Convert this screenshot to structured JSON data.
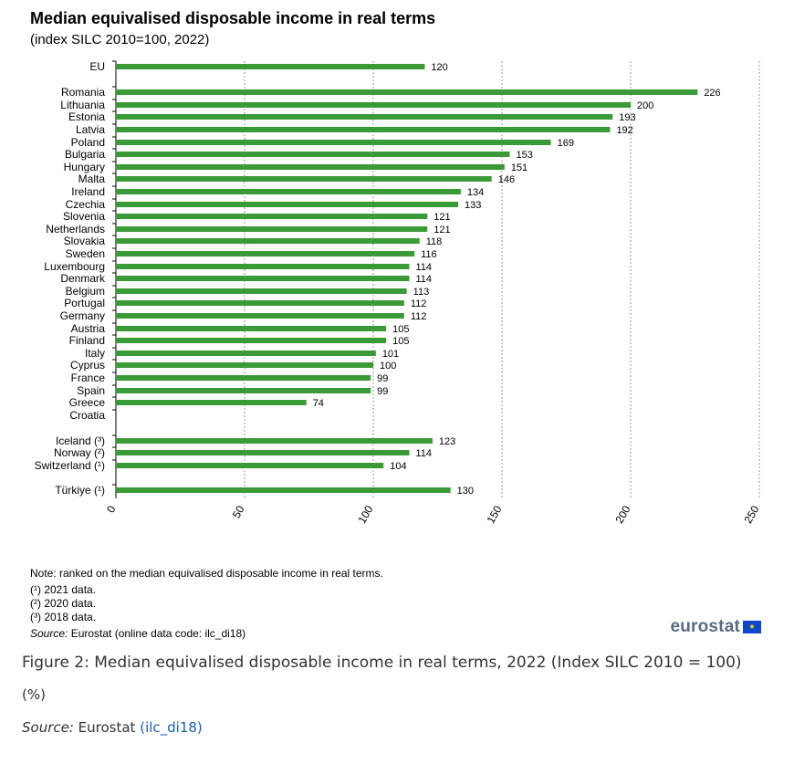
{
  "chart_data": {
    "type": "bar",
    "orientation": "horizontal",
    "title": "Median equivalised disposable income in real terms",
    "subtitle": "(index SILC 2010=100, 2022)",
    "xlim": [
      0,
      250
    ],
    "x_ticks": [
      "0",
      "50",
      "100",
      "150",
      "200",
      "250"
    ],
    "grid": true,
    "bar_color": "#3a9a35",
    "categories": [
      "EU",
      "Romania",
      "Lithuania",
      "Estonia",
      "Latvia",
      "Poland",
      "Bulgaria",
      "Hungary",
      "Malta",
      "Ireland",
      "Czechia",
      "Slovenia",
      "Netherlands",
      "Slovakia",
      "Sweden",
      "Luxembourg",
      "Denmark",
      "Belgium",
      "Portugal",
      "Germany",
      "Austria",
      "Finland",
      "Italy",
      "Cyprus",
      "France",
      "Spain",
      "Greece",
      "Croatia",
      "Iceland (³)",
      "Norway (²)",
      "Switzerland (¹)",
      "Türkiye (¹)"
    ],
    "values": [
      120,
      226,
      200,
      193,
      192,
      169,
      153,
      151,
      146,
      134,
      133,
      121,
      121,
      118,
      116,
      114,
      114,
      113,
      112,
      112,
      105,
      105,
      101,
      100,
      99,
      99,
      74,
      null,
      123,
      114,
      104,
      130
    ],
    "value_labels": [
      "120",
      "226",
      "200",
      "193",
      "192",
      "169",
      "153",
      "151",
      "146",
      "134",
      "133",
      "121",
      "121",
      "118",
      "116",
      "114",
      "114",
      "113",
      "112",
      "112",
      "105",
      "105",
      "101",
      "100",
      "99",
      "99",
      "74",
      "",
      "123",
      "114",
      "104",
      "130"
    ]
  },
  "notes": {
    "line1": "Note: ranked on the median equivalised disposable income in real terms.",
    "line2": "(¹) 2021 data.",
    "line3": "(²) 2020 data.",
    "line4": "(³) 2018 data.",
    "source_label": "Source:",
    "source_text": " Eurostat (online data code: ilc_di18)"
  },
  "logo": {
    "text": "eurostat",
    "flag_glyph": "★"
  },
  "caption": {
    "title": "Figure 2: Median equivalised disposable income in real terms, 2022 (Index SILC 2010 = 100)",
    "unit": "(%)",
    "source_label": "Source:",
    "source_text": " Eurostat ",
    "source_link": "(ilc_di18)"
  }
}
